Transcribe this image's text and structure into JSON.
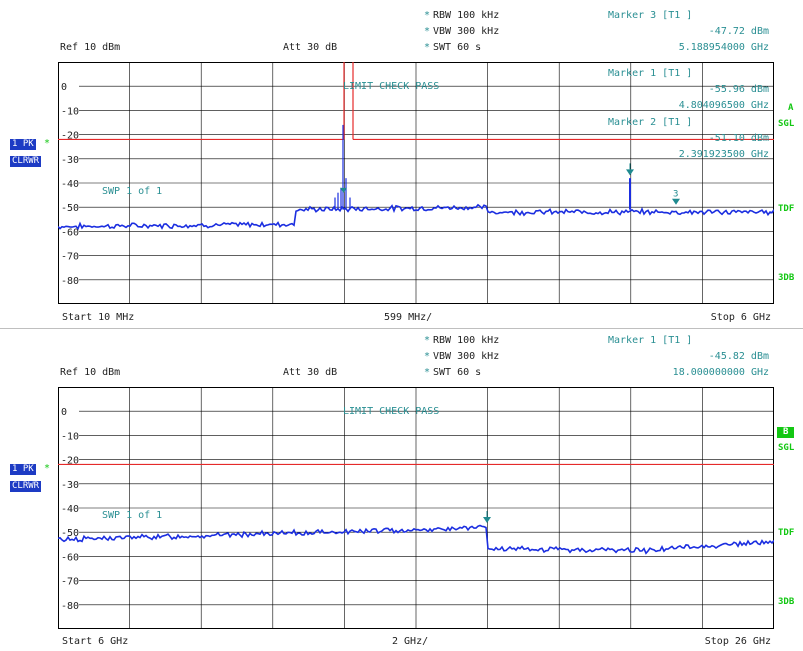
{
  "colors": {
    "trace": "#1b2ee0",
    "limit_line": "#e52a2a",
    "marker": "#1f8a8f",
    "grid": "#000000",
    "side_label": "#13c713",
    "badge_bg": "#1d3bc4"
  },
  "top": {
    "header": {
      "rbw": "RBW 100 kHz",
      "vbw": "VBW 300 kHz",
      "swt": "SWT 60 s",
      "ref": "Ref  10 dBm",
      "att": "Att  30 dB",
      "marker_title": "Marker 3 [T1 ]",
      "marker_level": "-47.72 dBm",
      "marker_freq": "5.188954000 GHz"
    },
    "overlay": {
      "m1_title": "Marker 1 [T1 ]",
      "m1_level": "-55.96 dBm",
      "m1_freq": "4.804096500 GHz",
      "m2_title": "Marker 2 [T1 ]",
      "m2_level": "-51.10 dBm",
      "m2_freq": "2.391923500 GHz",
      "limit_check": "LIMIT CHECK   PASS",
      "swp": "SWP     1 of     1"
    },
    "y_ticks": [
      "0",
      "-10",
      "-20",
      "-30",
      "-40",
      "-50",
      "-60",
      "-70",
      "-80"
    ],
    "footer": {
      "start": "Start  10 MHz",
      "div": "599 MHz/",
      "stop": "Stop  6 GHz"
    },
    "badges": {
      "pk": "1 PK",
      "mode": "CLRWR",
      "star": "*"
    },
    "side": {
      "channel": "A",
      "sgl": "SGL",
      "tdf": "TDF",
      "db3": "3DB"
    },
    "marker_3_label": "3"
  },
  "bottom": {
    "header": {
      "rbw": "RBW 100 kHz",
      "vbw": "VBW 300 kHz",
      "swt": "SWT 60 s",
      "ref": "Ref  10 dBm",
      "att": "Att  30 dB",
      "marker_title": "Marker 1 [T1 ]",
      "marker_level": "-45.82 dBm",
      "marker_freq": "18.000000000 GHz"
    },
    "overlay": {
      "limit_check": "LIMIT CHECK   PASS",
      "swp": "SWP     1 of     1"
    },
    "y_ticks": [
      "0",
      "-10",
      "-20",
      "-30",
      "-40",
      "-50",
      "-60",
      "-70",
      "-80"
    ],
    "footer": {
      "start": "Start  6 GHz",
      "div": "2 GHz/",
      "stop": "Stop  26 GHz"
    },
    "badges": {
      "pk": "1 PK",
      "mode": "CLRWR",
      "star": "*"
    },
    "side": {
      "channel": "B",
      "sgl": "SGL",
      "tdf": "TDF",
      "db3": "3DB"
    }
  }
}
